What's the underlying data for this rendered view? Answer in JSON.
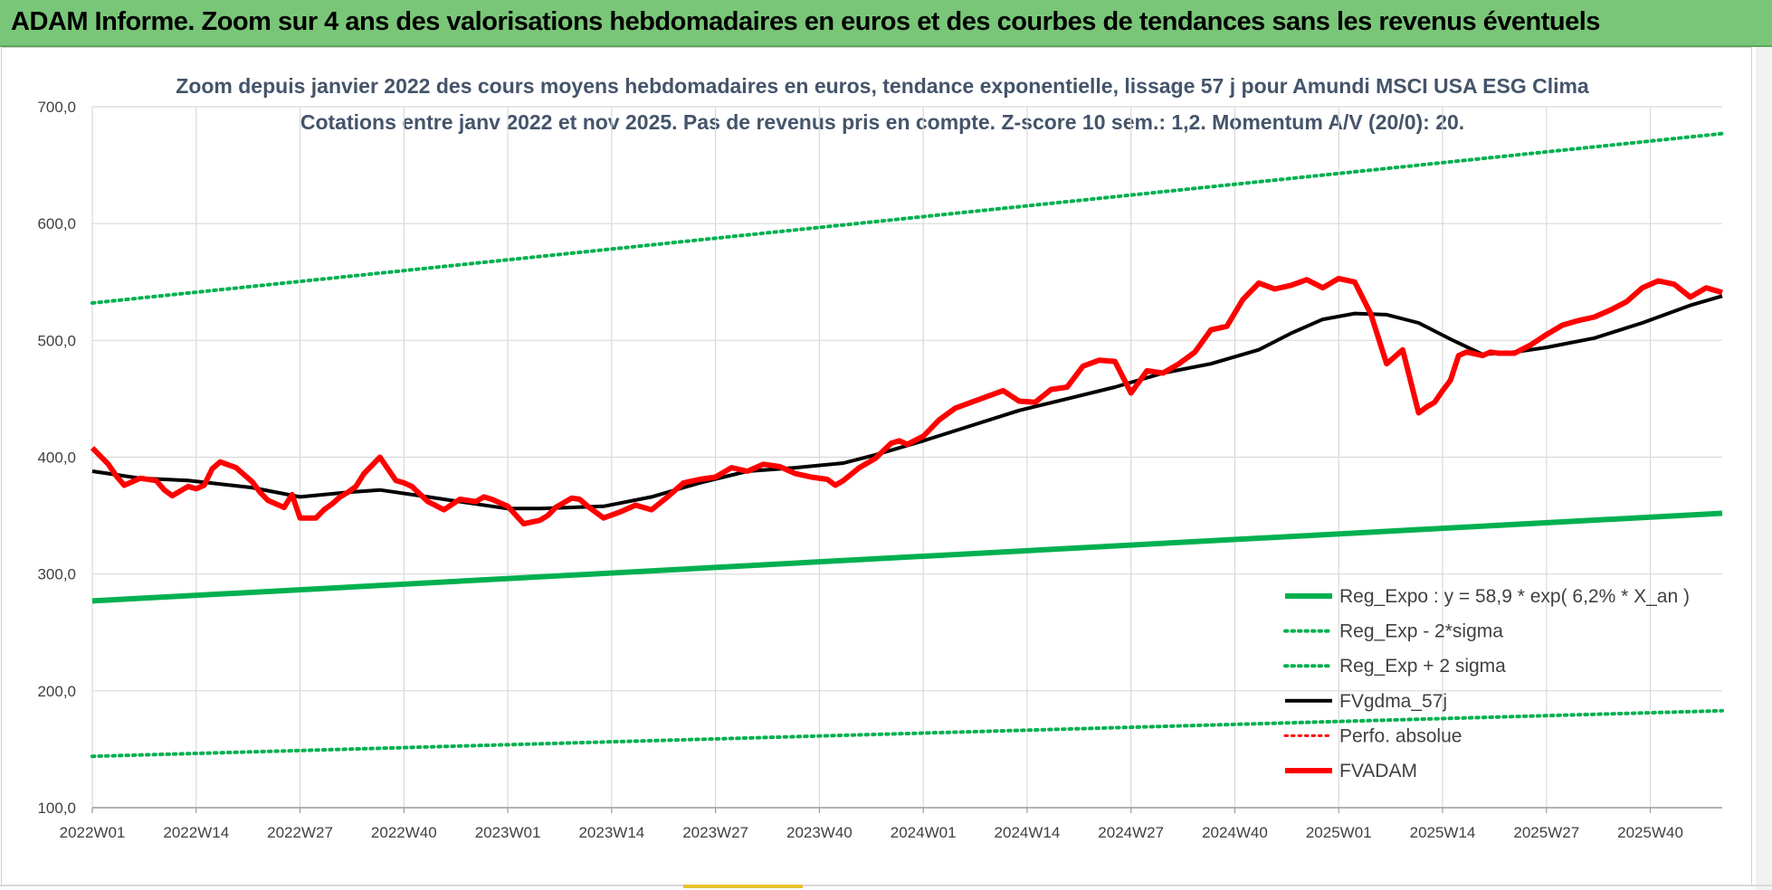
{
  "banner": {
    "title": "ADAM Informe. Zoom sur 4 ans des valorisations hebdomadaires en euros et des courbes de tendances sans les revenus éventuels"
  },
  "chart_data": {
    "type": "line",
    "title_line1": "Zoom depuis janvier 2022 des cours moyens hebdomadaires en euros, tendance exponentielle, lissage 57 j pour Amundi MSCI USA ESG Clima",
    "title_line2": "Cotations entre janv 2022 et nov 2025. Pas de revenus pris en compte. Z-score 10 sem.: 1,2. Momentum A/V (20/0): 20.",
    "ylim": [
      100,
      700
    ],
    "yticks": [
      "100,0",
      "200,0",
      "300,0",
      "400,0",
      "500,0",
      "600,0",
      "700,0"
    ],
    "ytick_values": [
      100,
      200,
      300,
      400,
      500,
      600,
      700
    ],
    "xlim": [
      0,
      204
    ],
    "xticks": [
      "2022W01",
      "2022W14",
      "2022W27",
      "2022W40",
      "2023W01",
      "2023W14",
      "2023W27",
      "2023W40",
      "2024W01",
      "2024W14",
      "2024W27",
      "2024W40",
      "2025W01",
      "2025W14",
      "2025W27",
      "2025W40"
    ],
    "xtick_positions": [
      0,
      13,
      26,
      39,
      52,
      65,
      78,
      91,
      104,
      117,
      130,
      143,
      156,
      169,
      182,
      195
    ],
    "series": [
      {
        "name": "Reg_Expo : y = 58,9 * exp( 6,2% *  X_an )",
        "color": "#00b050",
        "style": "solid",
        "width": 6,
        "x": [
          0,
          204
        ],
        "values": [
          277,
          352
        ]
      },
      {
        "name": "Reg_Exp - 2*sigma",
        "color": "#00b050",
        "style": "dotted",
        "width": 4,
        "x": [
          0,
          204
        ],
        "values": [
          144,
          183
        ]
      },
      {
        "name": "Reg_Exp + 2 sigma",
        "color": "#00b050",
        "style": "dotted",
        "width": 4,
        "x": [
          0,
          204
        ],
        "values": [
          532,
          677
        ]
      },
      {
        "name": "FVgdma_57j",
        "color": "#000000",
        "style": "solid",
        "width": 4,
        "x": [
          0,
          6,
          12,
          20,
          26,
          32,
          36,
          42,
          48,
          52,
          56,
          64,
          70,
          76,
          82,
          88,
          94,
          98,
          104,
          110,
          116,
          122,
          128,
          134,
          140,
          146,
          150,
          154,
          158,
          162,
          166,
          170,
          174,
          178,
          182,
          188,
          194,
          200,
          204
        ],
        "values": [
          388,
          382,
          380,
          374,
          366,
          370,
          372,
          366,
          360,
          356,
          356,
          358,
          366,
          378,
          388,
          391,
          395,
          402,
          414,
          427,
          440,
          450,
          460,
          472,
          480,
          492,
          506,
          518,
          523,
          522,
          515,
          501,
          488,
          490,
          494,
          502,
          515,
          530,
          538
        ]
      },
      {
        "name": "Perfo. absolue",
        "color": "#ff0000",
        "style": "dotted",
        "width": 3,
        "x": [],
        "values": []
      },
      {
        "name": "FVADAM",
        "color": "#ff0000",
        "style": "solid",
        "width": 6,
        "x": [
          0,
          2,
          3,
          4,
          6,
          8,
          9,
          10,
          12,
          13,
          14,
          15,
          16,
          18,
          20,
          21,
          22,
          23,
          24,
          25,
          26,
          28,
          29,
          30,
          31,
          32,
          33,
          34,
          36,
          38,
          39,
          40,
          42,
          44,
          46,
          48,
          49,
          50,
          52,
          54,
          56,
          57,
          58,
          60,
          61,
          62,
          64,
          66,
          68,
          70,
          72,
          74,
          76,
          78,
          80,
          82,
          84,
          86,
          88,
          90,
          92,
          93,
          94,
          96,
          98,
          100,
          101,
          102,
          104,
          106,
          108,
          110,
          112,
          114,
          116,
          118,
          120,
          122,
          124,
          126,
          128,
          130,
          132,
          134,
          136,
          138,
          140,
          142,
          144,
          146,
          148,
          150,
          152,
          154,
          156,
          158,
          160,
          162,
          164,
          166,
          167,
          168,
          169,
          170,
          171,
          172,
          174,
          175,
          176,
          178,
          180,
          182,
          184,
          186,
          188,
          190,
          192,
          194,
          196,
          198,
          200,
          202,
          204
        ],
        "values": [
          408,
          394,
          384,
          376,
          382,
          380,
          372,
          367,
          375,
          373,
          376,
          390,
          396,
          391,
          379,
          370,
          363,
          360,
          357,
          368,
          348,
          348,
          355,
          360,
          366,
          370,
          375,
          386,
          400,
          380,
          378,
          375,
          362,
          355,
          364,
          362,
          366,
          364,
          358,
          343,
          346,
          350,
          357,
          365,
          364,
          358,
          348,
          353,
          359,
          355,
          366,
          378,
          381,
          383,
          391,
          388,
          394,
          392,
          386,
          383,
          381,
          376,
          380,
          391,
          399,
          412,
          414,
          411,
          418,
          432,
          442,
          447,
          452,
          457,
          448,
          447,
          458,
          460,
          478,
          483,
          482,
          455,
          474,
          472,
          480,
          490,
          509,
          512,
          535,
          549,
          544,
          547,
          552,
          545,
          553,
          550,
          523,
          480,
          492,
          438,
          443,
          447,
          457,
          466,
          487,
          490,
          487,
          490,
          489,
          489,
          496,
          505,
          513,
          517,
          520,
          526,
          533,
          545,
          551,
          548,
          537,
          545,
          541
        ]
      }
    ],
    "legend_position": "bottom-right",
    "grid": true
  }
}
